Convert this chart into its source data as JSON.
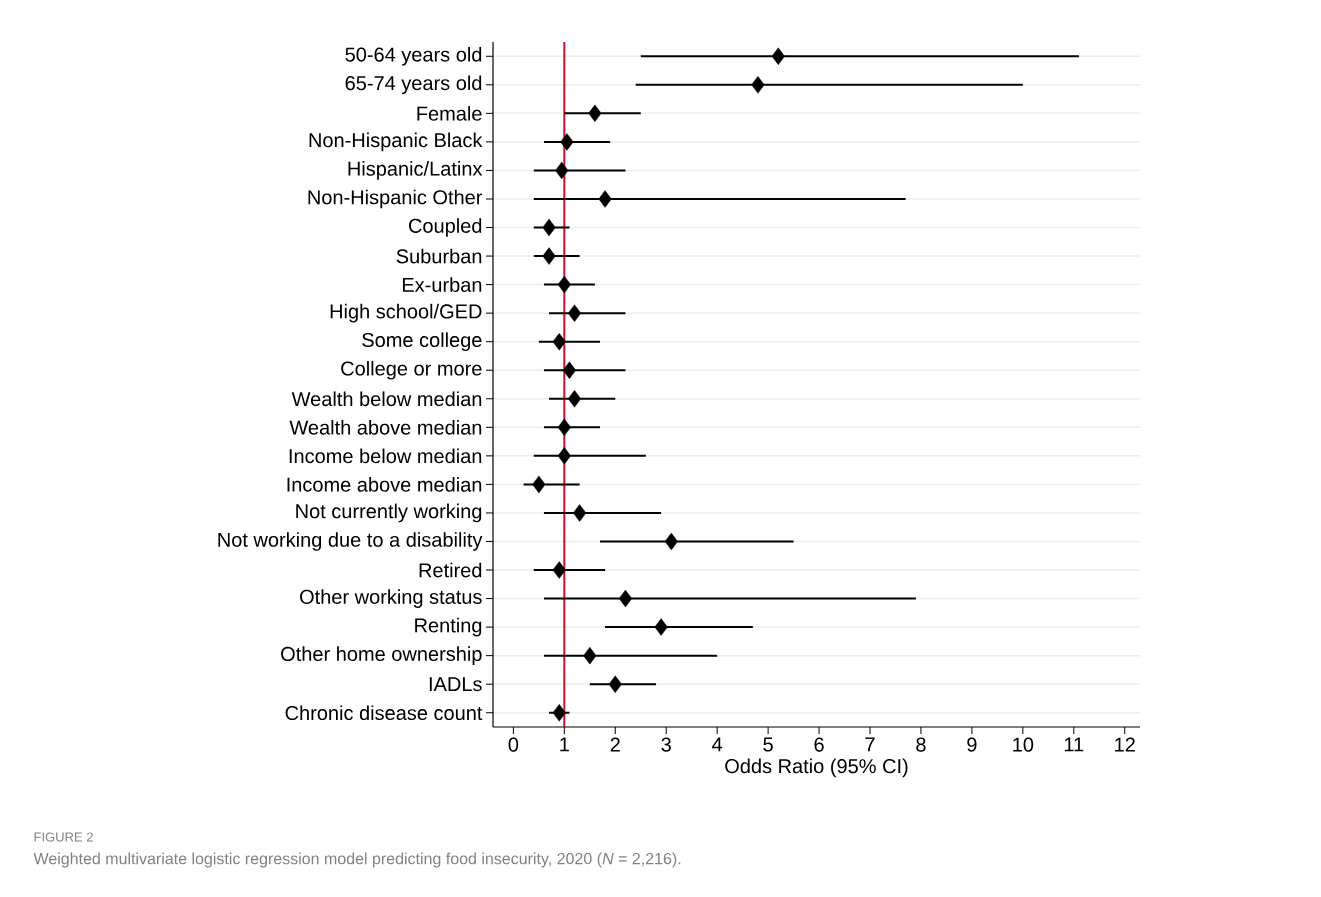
{
  "chart_data": {
    "type": "scatter",
    "orientation": "horizontal",
    "xlabel": "Odds Ratio (95% CI)",
    "categories": [
      "50-64 years old",
      "65-74 years old",
      "Female",
      "Non-Hispanic Black",
      "Hispanic/Latinx",
      "Non-Hispanic Other",
      "Coupled",
      "Suburban",
      "Ex-urban",
      "High school/GED",
      "Some college",
      "College or more",
      "Wealth below median",
      "Wealth above median",
      "Income below median",
      "Income above median",
      "Not currently working",
      "Not working due to a disability",
      "Retired",
      "Other working status",
      "Renting",
      "Other home ownership",
      "IADLs",
      "Chronic disease count"
    ],
    "values": [
      5.2,
      4.8,
      1.6,
      1.05,
      0.95,
      1.8,
      0.7,
      0.7,
      1.0,
      1.2,
      0.9,
      1.1,
      1.2,
      1.0,
      1.0,
      0.5,
      1.3,
      3.1,
      0.9,
      2.2,
      2.9,
      1.5,
      2.0,
      0.9
    ],
    "errors": [
      [
        2.5,
        11.1
      ],
      [
        2.4,
        10.0
      ],
      [
        1.0,
        2.5
      ],
      [
        0.6,
        1.9
      ],
      [
        0.4,
        2.2
      ],
      [
        0.4,
        7.7
      ],
      [
        0.4,
        1.1
      ],
      [
        0.4,
        1.3
      ],
      [
        0.6,
        1.6
      ],
      [
        0.7,
        2.2
      ],
      [
        0.5,
        1.7
      ],
      [
        0.6,
        2.2
      ],
      [
        0.7,
        2.0
      ],
      [
        0.6,
        1.7
      ],
      [
        0.4,
        2.6
      ],
      [
        0.2,
        1.3
      ],
      [
        0.6,
        2.9
      ],
      [
        1.7,
        5.5
      ],
      [
        0.4,
        1.8
      ],
      [
        0.6,
        7.9
      ],
      [
        1.8,
        4.7
      ],
      [
        0.6,
        4.0
      ],
      [
        1.5,
        2.8
      ],
      [
        0.7,
        1.1
      ]
    ],
    "color": "#000000",
    "marker": "diamond",
    "xlim": [
      -0.4,
      12.3
    ],
    "xticks": [
      0,
      1,
      2,
      3,
      4,
      5,
      6,
      7,
      8,
      9,
      10,
      11,
      12
    ],
    "grid": "y",
    "ref_lines": [
      {
        "axis": "x",
        "value": 1,
        "color": "#c8102e"
      }
    ],
    "annotations": [
      "FIGURE 2",
      "Weighted multivariate logistic regression model predicting food insecurity, 2020 (*N* = 2,216)."
    ]
  }
}
